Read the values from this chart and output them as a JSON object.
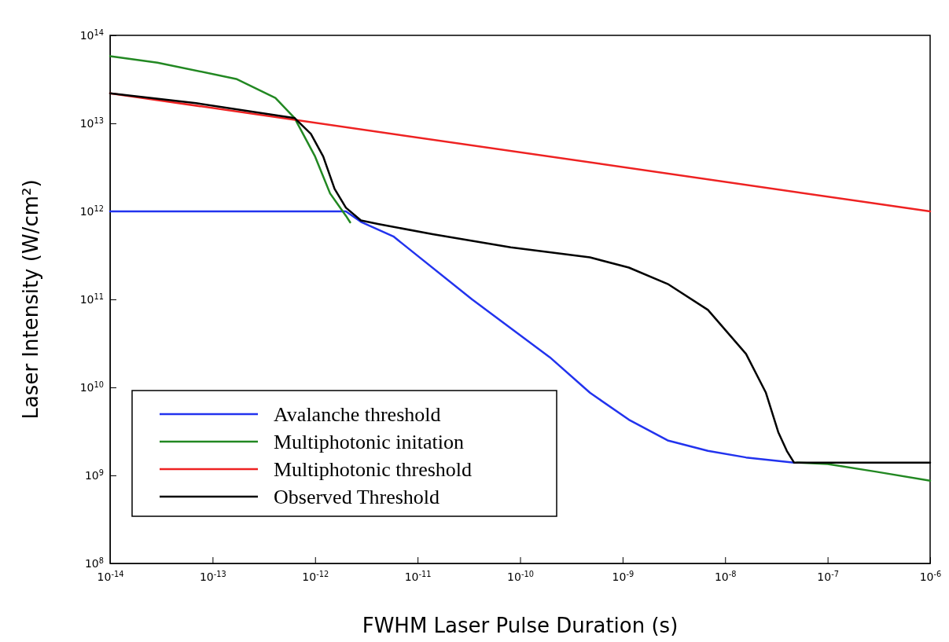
{
  "chart_data": {
    "type": "line",
    "xlabel": "FWHM Laser Pulse Duration (s)",
    "ylabel": "Laser Intensity (W/cm²)",
    "log": "xy",
    "grid": false,
    "legend": "bottom left",
    "line_style": "solid",
    "marker": "none",
    "xlim": [
      1e-14,
      1e-06
    ],
    "ylim": [
      100000000.0,
      100000000000000.0
    ],
    "xticks": [
      {
        "value": 1e-14,
        "label": "10$^{-14}$"
      },
      {
        "value": 1e-13,
        "label": "10$^{-13}$"
      },
      {
        "value": 1e-12,
        "label": "10$^{-12}$"
      },
      {
        "value": 1e-11,
        "label": "10$^{-11}$"
      },
      {
        "value": 1e-10,
        "label": "10$^{-10}$"
      },
      {
        "value": 1e-09,
        "label": "10$^{-9}$"
      },
      {
        "value": 1e-08,
        "label": "10$^{-8}$"
      },
      {
        "value": 1e-07,
        "label": "10$^{-7}$"
      },
      {
        "value": 1e-06,
        "label": "10$^{-6}$"
      }
    ],
    "yticks": [
      {
        "value": 100000000.0,
        "label": "10$^{8}$"
      },
      {
        "value": 1000000000.0,
        "label": "10$^{9}$"
      },
      {
        "value": 10000000000.0,
        "label": "10$^{10}$"
      },
      {
        "value": 100000000000.0,
        "label": "10$^{11}$"
      },
      {
        "value": 1000000000000.0,
        "label": "10$^{12}$"
      },
      {
        "value": 10000000000000.0,
        "label": "10$^{13}$"
      },
      {
        "value": 100000000000000.0,
        "label": "10$^{14}$"
      }
    ],
    "series": [
      {
        "name": "Avalanche threshold",
        "color": "#2233ee",
        "x": [
          1e-14,
          2e-12,
          2.8e-12,
          5.8e-12,
          3.4e-11,
          1.95e-10,
          4.8e-10,
          1.15e-09,
          2.75e-09,
          6.8e-09,
          1.6e-08,
          4.7e-08
        ],
        "values": [
          1000000000000.0,
          1000000000000.0,
          760000000000.0,
          520000000000.0,
          100000000000.0,
          22000000000.0,
          8700000000.0,
          4300000000.0,
          2500000000.0,
          1900000000.0,
          1600000000.0,
          1400000000.0
        ]
      },
      {
        "name": "Multiphotonic initation",
        "color": "#228822",
        "x": [
          1e-14,
          2.9e-14,
          1.7e-13,
          4.1e-13,
          6.3e-13,
          1e-12,
          1.4e-12,
          2e-12,
          2.2e-12,
          1e-10,
          5e-08,
          1e-07,
          3e-07,
          1e-06
        ],
        "values": [
          58000000000000.0,
          49000000000000.0,
          32000000000000.0,
          19500000000000.0,
          11500000000000.0,
          4200000000000.0,
          1600000000000.0,
          890000000000.0,
          750000000000.0,
          null,
          1400000000.0,
          1350000000.0,
          1100000000.0,
          870000000.0
        ]
      },
      {
        "name": "Multiphotonic threshold",
        "color": "#ee2222",
        "x": [
          1e-14,
          1e-06
        ],
        "values": [
          22000000000000.0,
          1000000000000.0
        ]
      },
      {
        "name": "Observed Threshold",
        "color": "#000000",
        "x": [
          1e-14,
          6.9e-14,
          6.3e-13,
          9.1e-13,
          1.2e-12,
          1.55e-12,
          2e-12,
          2.8e-12,
          4.1e-12,
          1.4e-11,
          8.1e-11,
          4.8e-10,
          1.15e-09,
          2.75e-09,
          6.8e-09,
          1.6e-08,
          2.5e-08,
          3.3e-08,
          4e-08,
          4.7e-08,
          1e-06
        ],
        "values": [
          22000000000000.0,
          17000000000000.0,
          11500000000000.0,
          7600000000000.0,
          4200000000000.0,
          1800000000000.0,
          1100000000000.0,
          790000000000.0,
          720000000000.0,
          550000000000.0,
          390000000000.0,
          300000000000.0,
          230000000000.0,
          150000000000.0,
          76000000000.0,
          24000000000.0,
          8700000000.0,
          3100000000.0,
          1900000000.0,
          1400000000.0,
          1400000000.0
        ]
      }
    ]
  }
}
